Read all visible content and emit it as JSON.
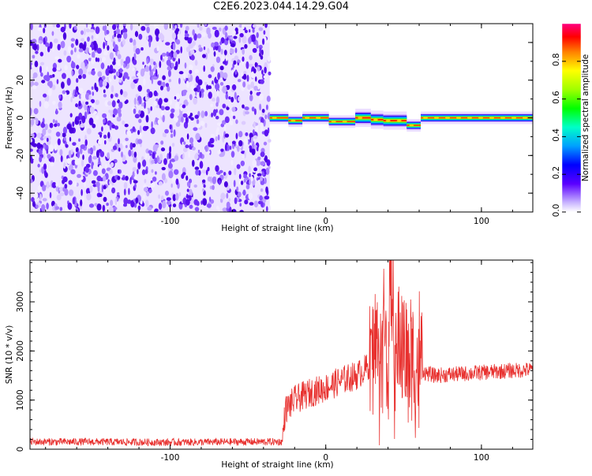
{
  "title": "C2E6.2023.044.14.29.G04",
  "colors": {
    "snr_line": "#e8312f",
    "axis": "#000000"
  },
  "chart_data": [
    {
      "type": "heatmap",
      "xlabel": "Height of straight line (km)",
      "ylabel": "Frequency (Hz)",
      "xlim": [
        -190,
        133
      ],
      "ylim": [
        -50,
        50
      ],
      "xticks": [
        -100,
        0,
        100
      ],
      "yticks": [
        -40,
        -20,
        0,
        20,
        40
      ],
      "grid": false,
      "noise_region_x": [
        -190,
        -36
      ],
      "ridge_segments": [
        {
          "x": [
            -36,
            -24
          ],
          "freq": 0
        },
        {
          "x": [
            -24,
            -15
          ],
          "freq": -1.5
        },
        {
          "x": [
            -15,
            2
          ],
          "freq": 0
        },
        {
          "x": [
            2,
            19
          ],
          "freq": -2
        },
        {
          "x": [
            19,
            29
          ],
          "freq": 0
        },
        {
          "x": [
            29,
            37
          ],
          "freq": -1
        },
        {
          "x": [
            37,
            52
          ],
          "freq": -1.5
        },
        {
          "x": [
            52,
            61
          ],
          "freq": -4
        },
        {
          "x": [
            61,
            133
          ],
          "freq": 0
        }
      ],
      "colorbar": {
        "label": "Normalized spectral amplitude",
        "range": [
          0,
          1
        ],
        "ticks": [
          0.0,
          0.2,
          0.4,
          0.6,
          0.8
        ],
        "tick_labels": [
          "0.0",
          "0.2",
          "0.4",
          "0.6",
          "0.8"
        ]
      }
    },
    {
      "type": "line",
      "xlabel": "Height of straight line (km)",
      "ylabel": "SNR (10 * v/v)",
      "xlim": [
        -190,
        133
      ],
      "ylim": [
        0,
        3850
      ],
      "xticks": [
        -100,
        0,
        100
      ],
      "yticks": [
        0,
        1000,
        2000,
        3000
      ],
      "grid": false,
      "series": [
        {
          "x": [
            -190,
            -150,
            -100,
            -50,
            -28,
            -26,
            -20,
            -10,
            0,
            10,
            20,
            28,
            31,
            35,
            38,
            40,
            42,
            45,
            48,
            52,
            55,
            58,
            60,
            64,
            70,
            80,
            90,
            100,
            110,
            120,
            133
          ],
          "values": [
            150,
            150,
            140,
            150,
            150,
            800,
            1000,
            1150,
            1250,
            1400,
            1500,
            1700,
            2200,
            1800,
            2600,
            1600,
            3200,
            1700,
            2300,
            1800,
            2000,
            1700,
            1700,
            1550,
            1500,
            1520,
            1540,
            1560,
            1580,
            1600,
            1620
          ]
        }
      ]
    }
  ]
}
